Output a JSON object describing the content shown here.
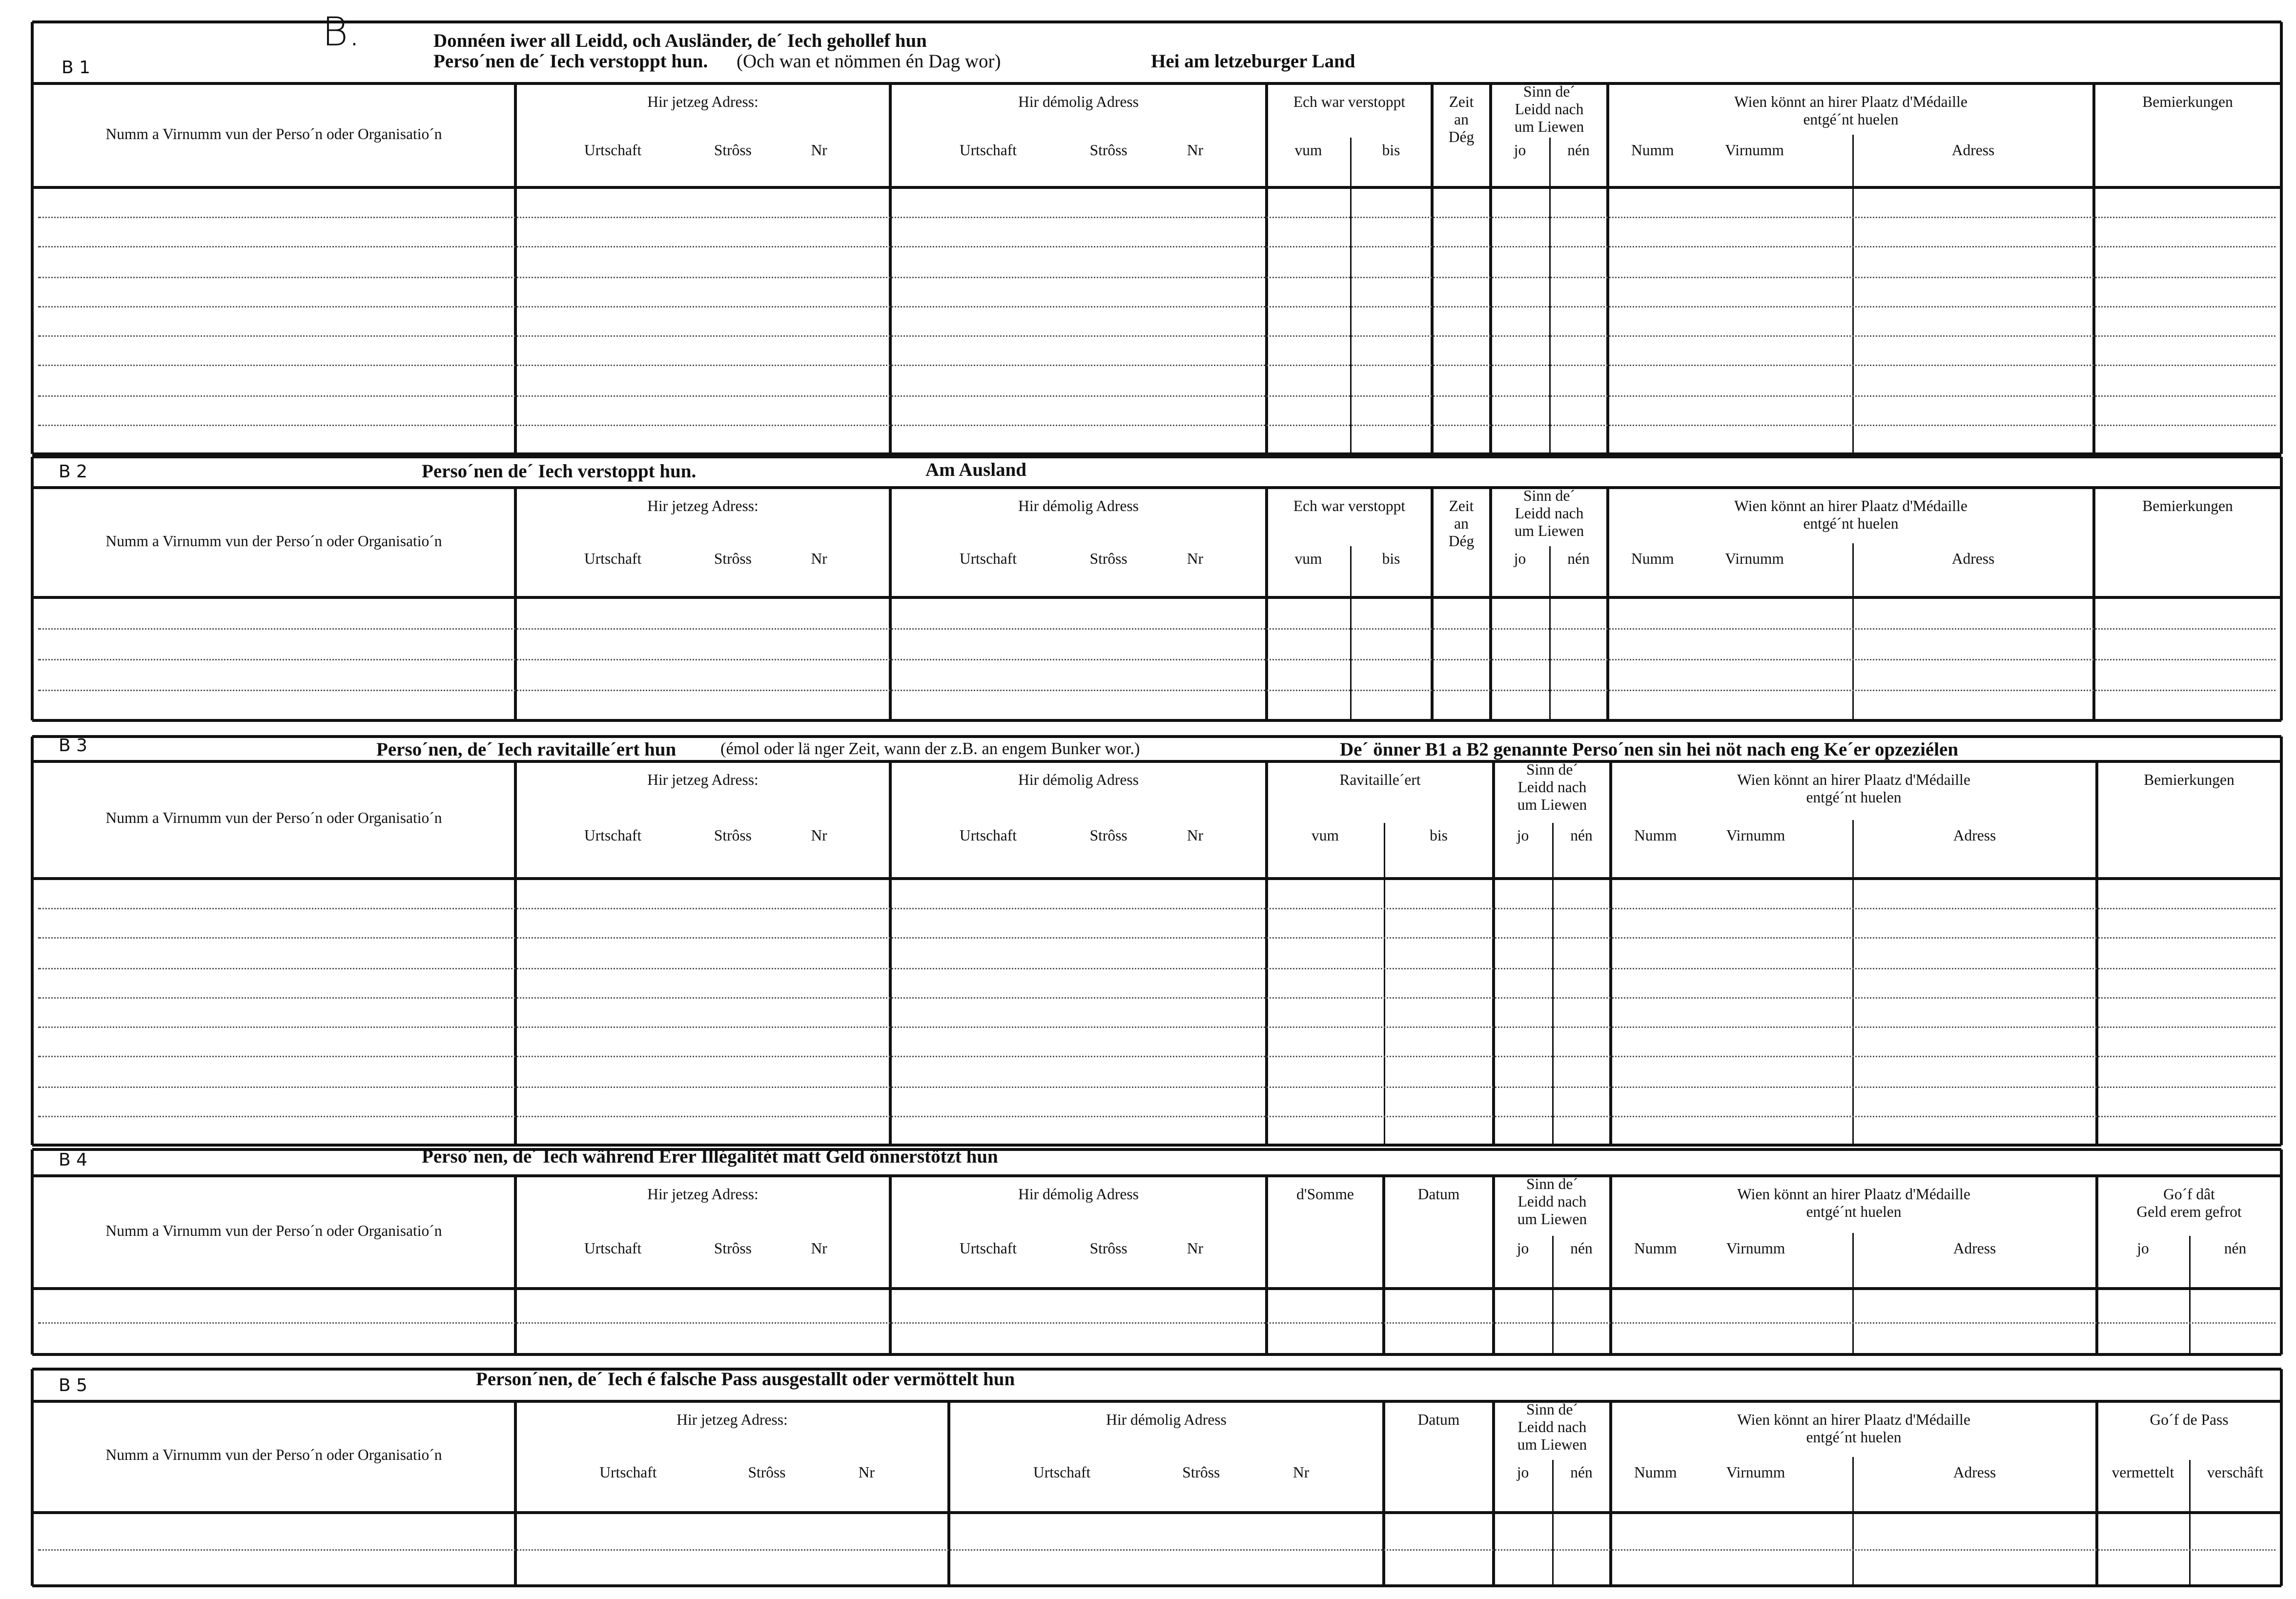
{
  "form_letter": "B.",
  "sections": [
    {
      "code": "B 1",
      "title_line1": "Donnéen iwer all Leidd, och Ausländer, de´ Iech gehollef hun",
      "title_line2": "Perso´nen de´ Iech verstoppt hun.",
      "title_note": "(Och wan et nömmen én Dag wor)",
      "title_extra": "Hei am letzeburger Land",
      "headers": {
        "name": "Numm a Virnumm vun der Perso´n oder Organisatio´n",
        "current_address": "Hir jetzeg Adress:",
        "former_address": "Hir démolig Adress",
        "town": "Urtschaft",
        "street": "Strôss",
        "number": "Nr",
        "period": "Ech war verstoppt",
        "from": "vum",
        "to": "bis",
        "days": "Zeit\nan\nDég",
        "survived": "Sinn de´\nLeidd nach\num Liewen",
        "yes": "jo",
        "no": "nén",
        "medal": "Wien könnt an hirer Plaatz d'Médaille\nentgé´nt huelen",
        "last_name": "Numm",
        "first_name": "Virnumm",
        "address": "Adress",
        "remarks": "Bemierkungen"
      }
    },
    {
      "code": "B 2",
      "title_line1": "Perso´nen de´ Iech verstoppt hun.",
      "title_extra": "Am Ausland",
      "headers": {
        "name": "Numm a Virnumm vun der Perso´n oder Organisatio´n",
        "current_address": "Hir jetzeg Adress:",
        "former_address": "Hir démolig Adress",
        "town": "Urtschaft",
        "street": "Strôss",
        "number": "Nr",
        "period": "Ech war verstoppt",
        "from": "vum",
        "to": "bis",
        "days": "Zeit\nan\nDég",
        "survived": "Sinn de´\nLeidd nach\num Liewen",
        "yes": "jo",
        "no": "nén",
        "medal": "Wien könnt an hirer Plaatz d'Médaille\nentgé´nt huelen",
        "last_name": "Numm",
        "first_name": "Virnumm",
        "address": "Adress",
        "remarks": "Bemierkungen"
      }
    },
    {
      "code": "B 3",
      "title_line1": "Perso´nen, de´ Iech ravitaille´ert hun",
      "title_note": "(émol oder lä nger Zeit, wann der z.B. an engem Bunker wor.)",
      "title_extra": "De´ önner B1 a B2 genannte Perso´nen sin hei nöt nach eng Ke´er opzeziélen",
      "headers": {
        "name": "Numm a Virnumm vun der Perso´n oder Organisatio´n",
        "current_address": "Hir jetzeg Adress:",
        "former_address": "Hir démolig Adress",
        "town": "Urtschaft",
        "street": "Strôss",
        "number": "Nr",
        "period": "Ravitaille´ert",
        "from": "vum",
        "to": "bis",
        "survived": "Sinn de´\nLeidd nach\num Liewen",
        "yes": "jo",
        "no": "nén",
        "medal": "Wien könnt an hirer Plaatz d'Médaille\nentgé´nt huelen",
        "last_name": "Numm",
        "first_name": "Virnumm",
        "address": "Adress",
        "remarks": "Bemierkungen"
      }
    },
    {
      "code": "B 4",
      "title_line1": "Perso´nen, de´ Iech während Erer Illégalitét matt Geld önnerstötzt hun",
      "headers": {
        "name": "Numm a Virnumm vun der Perso´n oder Organisatio´n",
        "current_address": "Hir jetzeg Adress:",
        "former_address": "Hir démolig Adress",
        "town": "Urtschaft",
        "street": "Strôss",
        "number": "Nr",
        "sum": "d'Somme",
        "date": "Datum",
        "survived": "Sinn de´\nLeidd nach\num Liewen",
        "yes": "jo",
        "no": "nén",
        "medal": "Wien könnt an hirer Plaatz d'Médaille\nentgé´nt huelen",
        "last_name": "Numm",
        "first_name": "Virnumm",
        "address": "Adress",
        "repaid": "Go´f dât\nGeld erem gefrot",
        "repaid_yes": "jo",
        "repaid_no": "nén"
      }
    },
    {
      "code": "B 5",
      "title_line1": "Person´nen, de´ Iech é falsche Pass ausgestallt oder vermöttelt hun",
      "headers": {
        "name": "Numm a Virnumm vun der Perso´n oder Organisatio´n",
        "current_address": "Hir jetzeg Adress:",
        "former_address": "Hir démolig Adress",
        "town": "Urtschaft",
        "street": "Strôss",
        "number": "Nr",
        "date": "Datum",
        "survived": "Sinn de´\nLeidd nach\num Liewen",
        "yes": "jo",
        "no": "nén",
        "medal": "Wien könnt an hirer Plaatz d'Médaille\nentgé´nt huelen",
        "last_name": "Numm",
        "first_name": "Virnumm",
        "address": "Adress",
        "pass": "Go´f de Pass",
        "pass_mediated": "vermettelt",
        "pass_procured": "verschâft"
      }
    }
  ]
}
